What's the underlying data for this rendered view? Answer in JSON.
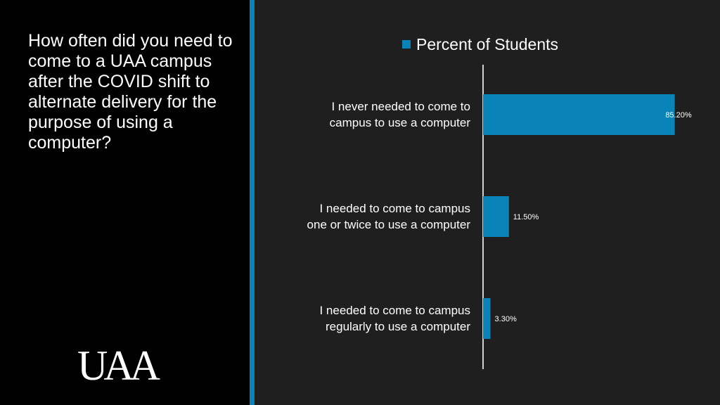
{
  "question": "How often did you need to come to a UAA campus after the COVID shift to alternate delivery for the purpose of using a computer?",
  "logo_text": "UAA",
  "colors": {
    "bar": "#0a84b8",
    "accent": "#0a84b8",
    "panel": "#000000",
    "background": "#1f1f1f"
  },
  "chart_data": {
    "type": "bar",
    "orientation": "horizontal",
    "categories": [
      "I never needed to come to\ncampus to use a computer",
      "I needed to come to campus\none or twice to use a computer",
      "I needed to come to campus\nregularly to use a computer"
    ],
    "series": [
      {
        "name": "Percent of Students",
        "values": [
          85.2,
          11.5,
          3.3
        ]
      }
    ],
    "data_labels": [
      "85.20%",
      "11.50%",
      "3.30%"
    ],
    "xlim": [
      0,
      100
    ],
    "legend": "top",
    "grid": false
  }
}
